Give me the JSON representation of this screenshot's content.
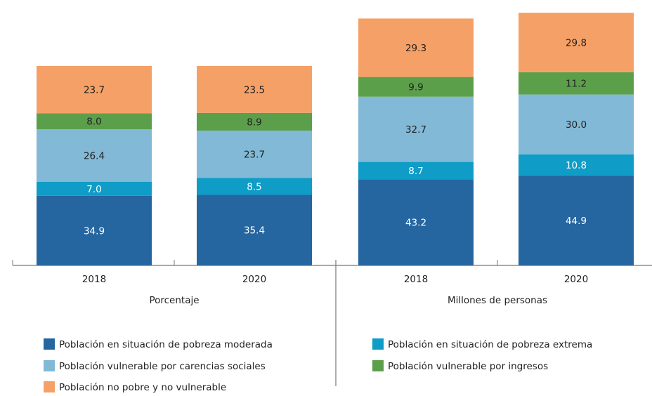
{
  "chart_data": {
    "type": "bar",
    "stacked": true,
    "categories": [
      "2018",
      "2020",
      "2018",
      "2020"
    ],
    "groups": [
      "Porcentaje",
      "Millones de personas"
    ],
    "series": [
      {
        "name": "Población en situación de pobreza moderada",
        "color": "#2566a0",
        "values": [
          34.9,
          35.4,
          43.2,
          44.9
        ],
        "value_labels": [
          "34.9",
          "35.4",
          "43.2",
          "44.9"
        ]
      },
      {
        "name": "Población en situación de pobreza extrema",
        "color": "#0f9cc6",
        "values": [
          7.0,
          8.5,
          8.7,
          10.8
        ],
        "value_labels": [
          "7.0",
          "8.5",
          "8.7",
          "10.8"
        ]
      },
      {
        "name": "Población vulnerable por carencias sociales",
        "color": "#82b9d7",
        "values": [
          26.4,
          23.7,
          32.7,
          30.0
        ],
        "value_labels": [
          "26.4",
          "23.7",
          "32.7",
          "30.0"
        ]
      },
      {
        "name": "Población vulnerable por ingresos",
        "color": "#5c9f4b",
        "values": [
          8.0,
          8.9,
          9.9,
          11.2
        ],
        "value_labels": [
          "8.0",
          "8.9",
          "9.9",
          "11.2"
        ]
      },
      {
        "name": "Población no pobre y no vulnerable",
        "color": "#f5a066",
        "values": [
          23.7,
          23.5,
          29.3,
          29.8
        ],
        "value_labels": [
          "23.7",
          "23.5",
          "29.3",
          "29.8"
        ]
      }
    ]
  }
}
